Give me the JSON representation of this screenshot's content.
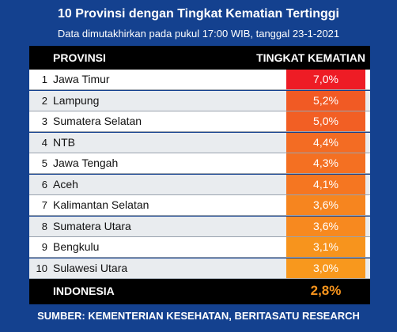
{
  "title": "10 Provinsi dengan Tingkat Kematian Tertinggi",
  "subtitle": "Data dimutakhirkan pada pukul 17:00 WIB, tanggal 23-1-2021",
  "header": {
    "col_province": "PROVINSI",
    "col_rate": "TINGKAT KEMATIAN"
  },
  "chart_data": {
    "type": "table",
    "columns": [
      "PROVINSI",
      "TINGKAT KEMATIAN"
    ],
    "rows": [
      {
        "rank": "1",
        "province": "Jawa Timur",
        "rate": 7.0,
        "rate_label": "7,0%",
        "color": "#ee1c25"
      },
      {
        "rank": "2",
        "province": "Lampung",
        "rate": 5.2,
        "rate_label": "5,2%",
        "color": "#f15a24"
      },
      {
        "rank": "3",
        "province": "Sumatera Selatan",
        "rate": 5.0,
        "rate_label": "5,0%",
        "color": "#f25f24"
      },
      {
        "rank": "4",
        "province": "NTB",
        "rate": 4.4,
        "rate_label": "4,4%",
        "color": "#f36c23"
      },
      {
        "rank": "5",
        "province": "Jawa Tengah",
        "rate": 4.3,
        "rate_label": "4,3%",
        "color": "#f47022"
      },
      {
        "rank": "6",
        "province": "Aceh",
        "rate": 4.1,
        "rate_label": "4,1%",
        "color": "#f57621"
      },
      {
        "rank": "7",
        "province": "Kalimantan Selatan",
        "rate": 3.6,
        "rate_label": "3,6%",
        "color": "#f6851f"
      },
      {
        "rank": "8",
        "province": "Sumatera Utara",
        "rate": 3.6,
        "rate_label": "3,6%",
        "color": "#f7891f"
      },
      {
        "rank": "9",
        "province": "Bengkulu",
        "rate": 3.1,
        "rate_label": "3,1%",
        "color": "#f7941d"
      },
      {
        "rank": "10",
        "province": "Sulawesi Utara",
        "rate": 3.0,
        "rate_label": "3,0%",
        "color": "#f8981d"
      }
    ],
    "total": {
      "province": "INDONESIA",
      "rate": 2.8,
      "rate_label": "2,8%",
      "color": "#f7941d"
    }
  },
  "source": "SUMBER: KEMENTERIAN KESEHATAN, BERITASATU RESEARCH",
  "colors": {
    "background": "#14418f",
    "header": "#000000",
    "row_light": "#ffffff",
    "row_alt": "#e9ecef"
  }
}
